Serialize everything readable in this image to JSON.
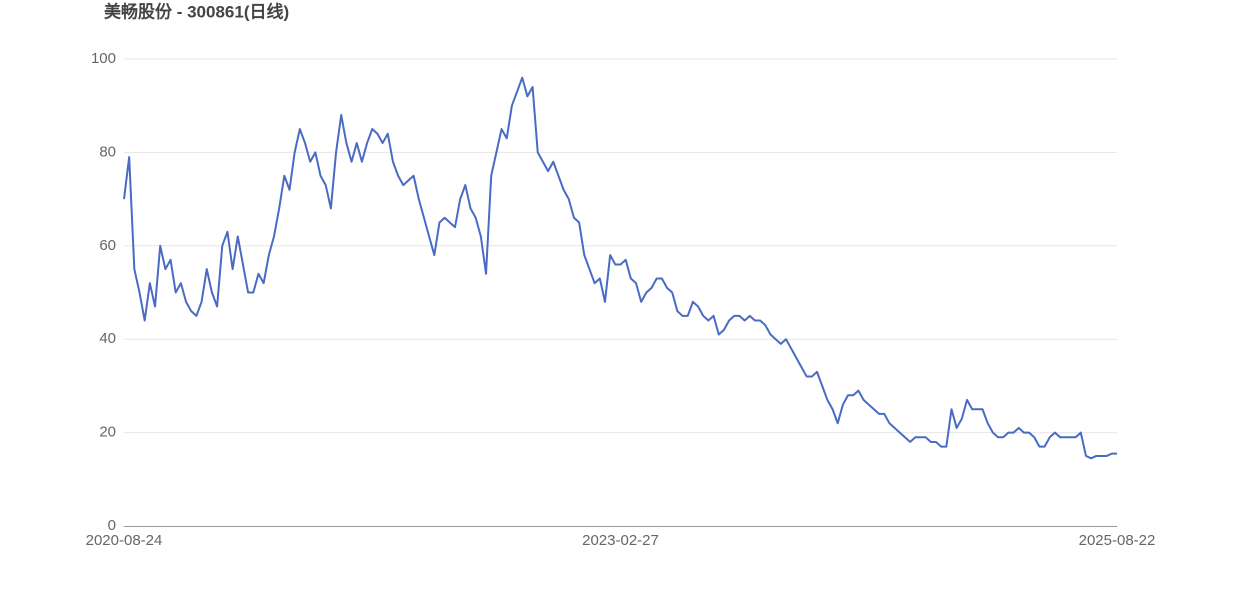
{
  "chart_data": {
    "type": "line",
    "title": "美畅股份 - 300861(日线)",
    "categories": [
      "2020-08-24",
      null,
      null,
      null,
      null,
      null,
      null,
      null,
      null,
      null,
      null,
      null,
      null,
      null,
      null,
      null,
      null,
      null,
      null,
      null,
      null,
      null,
      null,
      null,
      null,
      null,
      null,
      null,
      null,
      null,
      null,
      null,
      null,
      null,
      null,
      null,
      null,
      null,
      null,
      null,
      null,
      null,
      null,
      null,
      null,
      null,
      null,
      null,
      null,
      null,
      null,
      null,
      null,
      null,
      null,
      null,
      null,
      null,
      null,
      null,
      null,
      null,
      null,
      null,
      null,
      null,
      null,
      null,
      null,
      null,
      null,
      null,
      null,
      null,
      null,
      null,
      null,
      null,
      null,
      null,
      null,
      null,
      null,
      null,
      null,
      null,
      null,
      null,
      null,
      null,
      null,
      null,
      null,
      null,
      null,
      null,
      "2023-02-27",
      null,
      null,
      null,
      null,
      null,
      null,
      null,
      null,
      null,
      null,
      null,
      null,
      null,
      null,
      null,
      null,
      null,
      null,
      null,
      null,
      null,
      null,
      null,
      null,
      null,
      null,
      null,
      null,
      null,
      null,
      null,
      null,
      null,
      null,
      null,
      null,
      null,
      null,
      null,
      null,
      null,
      null,
      null,
      null,
      null,
      null,
      null,
      null,
      null,
      null,
      null,
      null,
      null,
      null,
      null,
      null,
      null,
      null,
      null,
      null,
      null,
      null,
      null,
      null,
      null,
      null,
      null,
      null,
      null,
      null,
      null,
      null,
      null,
      null,
      null,
      null,
      null,
      null,
      null,
      null,
      null,
      null,
      null,
      null,
      null,
      null,
      null,
      null,
      null,
      null,
      null,
      null,
      null,
      null,
      null,
      "2025-08-22"
    ],
    "values": [
      70,
      79,
      55,
      50,
      44,
      52,
      47,
      60,
      55,
      57,
      50,
      52,
      48,
      46,
      45,
      48,
      55,
      50,
      47,
      60,
      63,
      55,
      62,
      56,
      50,
      50,
      54,
      52,
      58,
      62,
      68,
      75,
      72,
      80,
      85,
      82,
      78,
      80,
      75,
      73,
      68,
      80,
      88,
      82,
      78,
      82,
      78,
      82,
      85,
      84,
      82,
      84,
      78,
      75,
      73,
      74,
      75,
      70,
      66,
      62,
      58,
      65,
      66,
      65,
      64,
      70,
      73,
      68,
      66,
      62,
      54,
      75,
      80,
      85,
      83,
      90,
      93,
      96,
      92,
      94,
      80,
      78,
      76,
      78,
      75,
      72,
      70,
      66,
      65,
      58,
      55,
      52,
      53,
      48,
      58,
      56,
      56,
      57,
      53,
      52,
      48,
      50,
      51,
      53,
      53,
      51,
      50,
      46,
      45,
      45,
      48,
      47,
      45,
      44,
      45,
      41,
      42,
      44,
      45,
      45,
      44,
      45,
      44,
      44,
      43,
      41,
      40,
      39,
      40,
      38,
      36,
      34,
      32,
      32,
      33,
      30,
      27,
      25,
      22,
      26,
      28,
      28,
      29,
      27,
      26,
      25,
      24,
      24,
      22,
      21,
      20,
      19,
      18,
      19,
      19,
      19,
      18,
      18,
      17,
      17,
      25,
      21,
      23,
      27,
      25,
      25,
      25,
      22,
      20,
      19,
      19,
      20,
      20,
      21,
      20,
      20,
      19,
      17,
      17,
      19,
      20,
      19,
      19,
      19,
      19,
      20,
      15,
      14.5,
      15,
      15,
      15,
      15.5,
      15.5
    ],
    "color": "#4a6bc4",
    "ylim": [
      0,
      100
    ],
    "yticks": [
      0,
      20,
      40,
      60,
      80,
      100
    ],
    "grid": true
  }
}
